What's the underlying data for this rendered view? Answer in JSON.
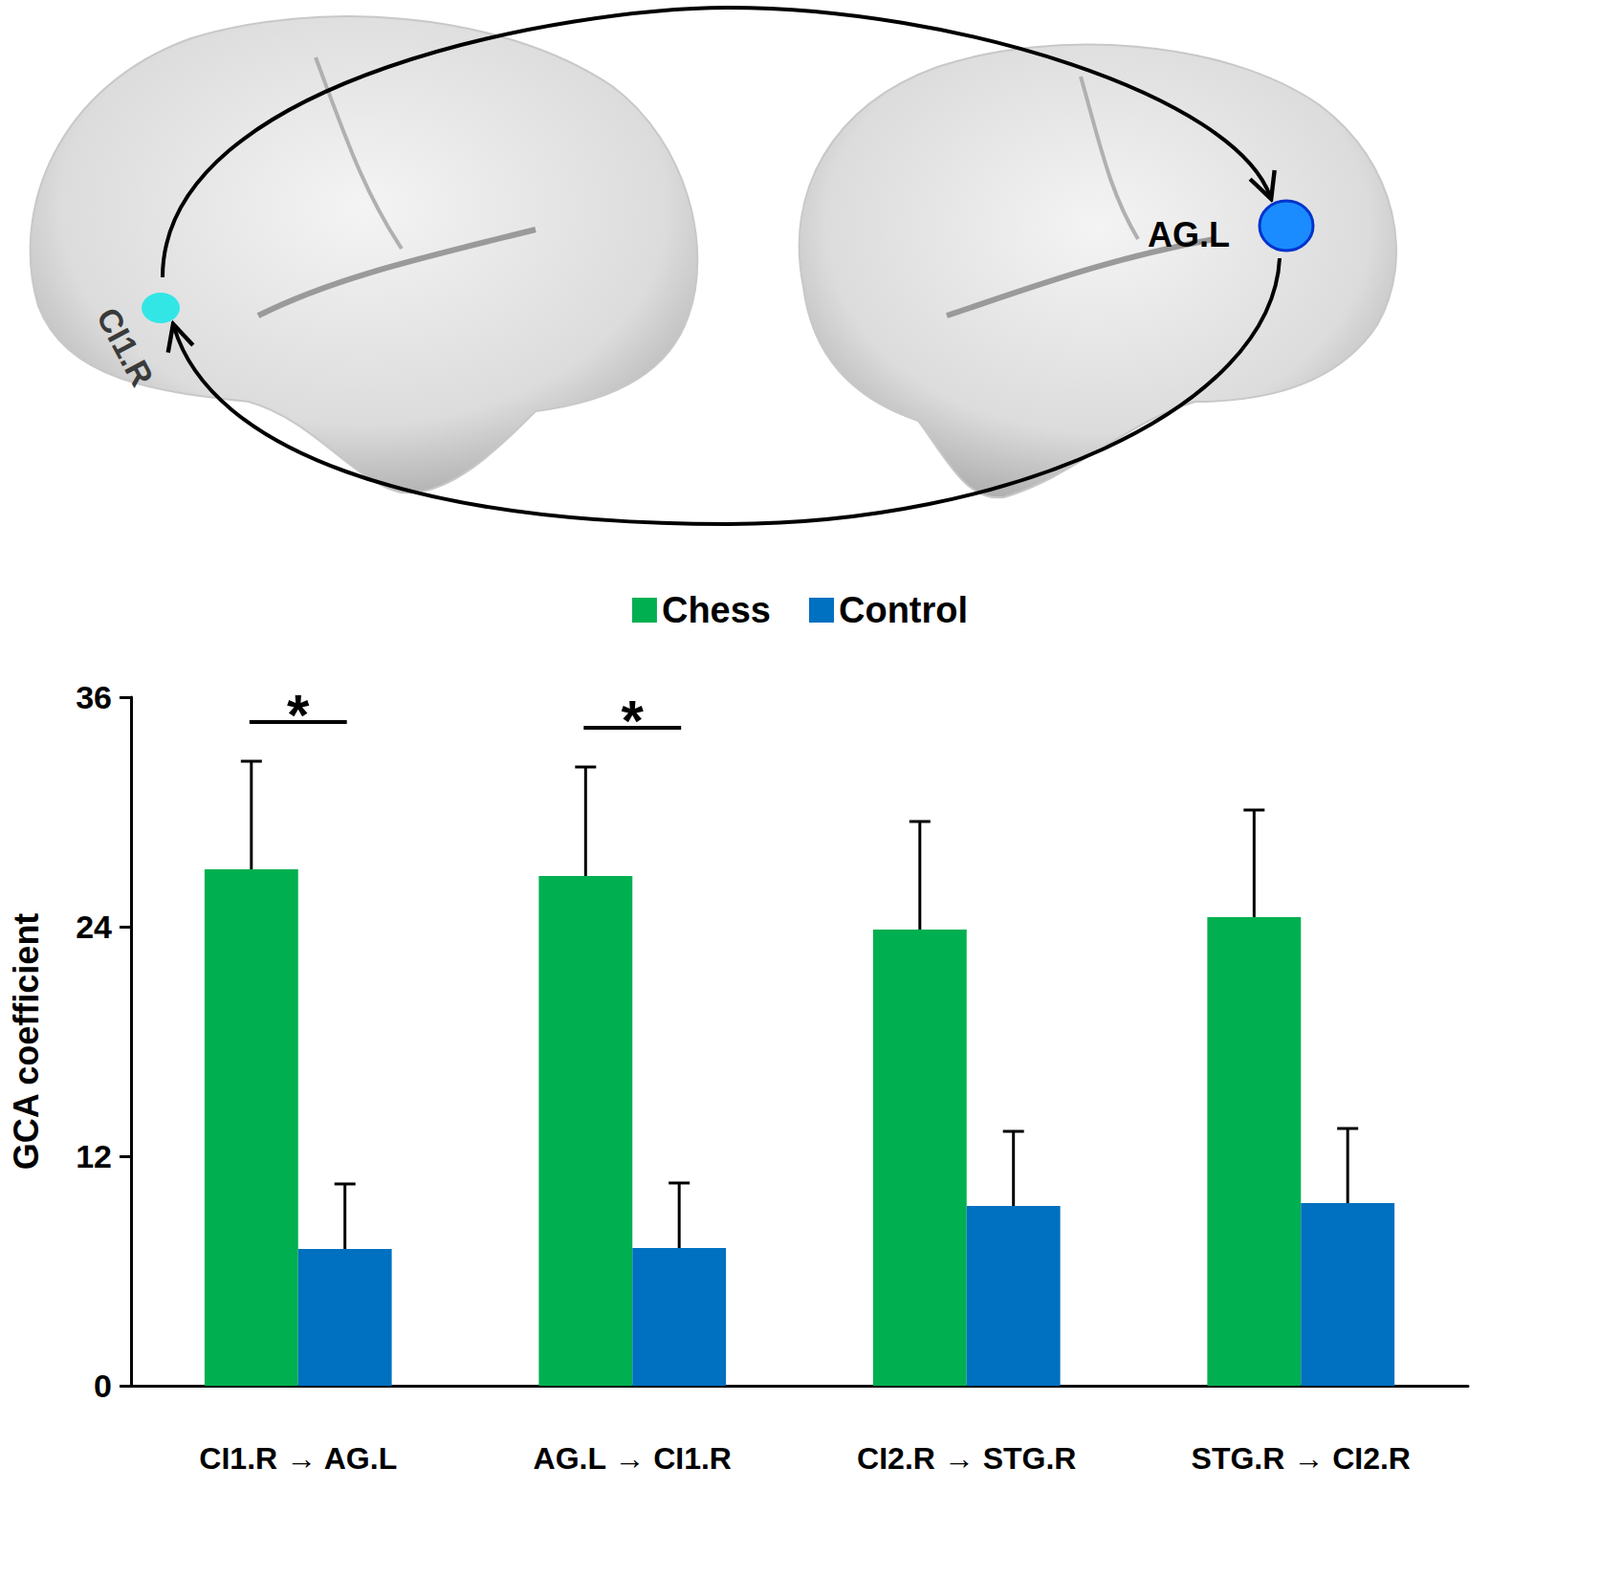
{
  "chart_data": {
    "type": "bar",
    "categories": [
      "CI1.R → AG.L",
      "AG.L → CI1.R",
      "CI2.R → STG.R",
      "STG.R → CI2.R"
    ],
    "series": [
      {
        "name": "Chess",
        "color": "#00b050",
        "values": [
          27.0,
          26.65,
          23.85,
          24.5
        ],
        "errors": [
          5.65,
          5.7,
          5.65,
          5.6
        ]
      },
      {
        "name": "Control",
        "color": "#0070c0",
        "values": [
          7.15,
          7.2,
          9.4,
          9.55
        ],
        "errors": [
          3.4,
          3.4,
          3.9,
          3.9
        ]
      }
    ],
    "ylabel": "GCA coefficient",
    "ylim": [
      0,
      36
    ],
    "yticks": [
      0,
      12,
      24,
      36
    ],
    "grid": false,
    "legend": "top",
    "significance": [
      {
        "category": "CI1.R → AG.L",
        "label": "*"
      },
      {
        "category": "AG.L → CI1.R",
        "label": "*"
      }
    ]
  },
  "diagram": {
    "regions": [
      {
        "label": "CI1.R",
        "color": "#33e6e6"
      },
      {
        "label": "AG.L",
        "color": "#1a8cff"
      }
    ]
  }
}
